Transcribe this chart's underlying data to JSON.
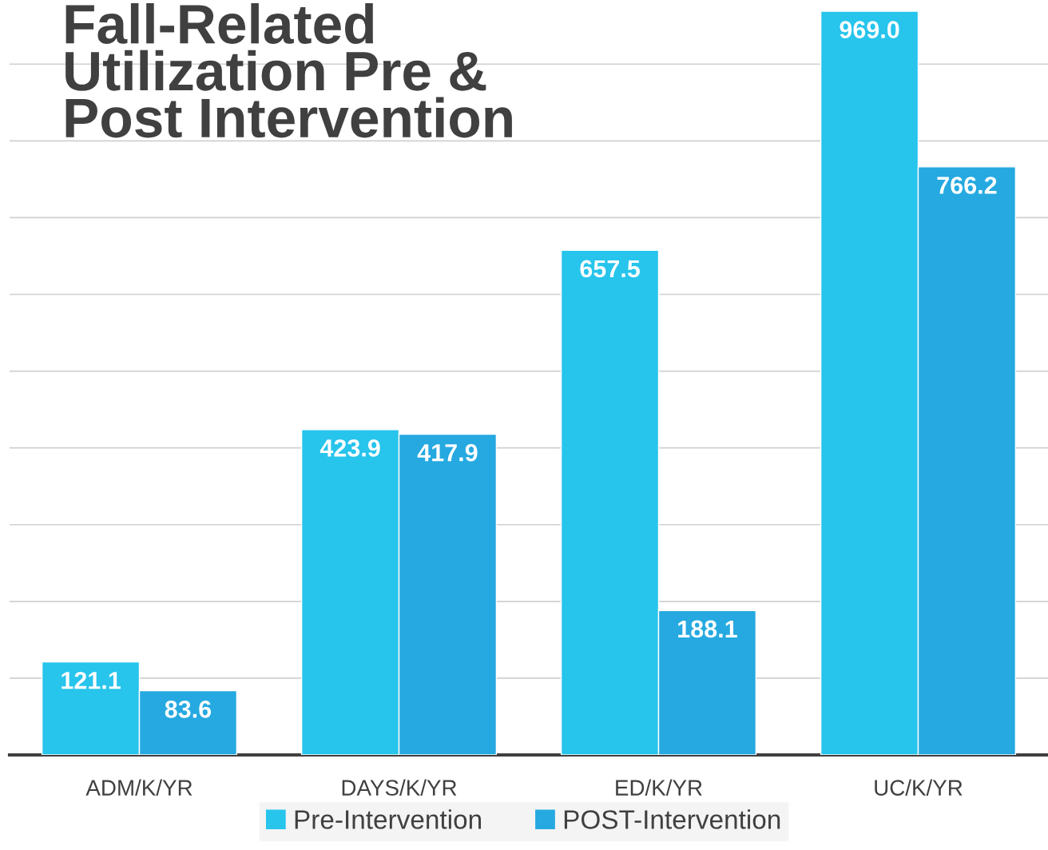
{
  "chart_data": {
    "type": "bar",
    "title": "Fall-Related\nUtilization Pre &\nPost Intervention",
    "categories": [
      "ADM/K/YR",
      "DAYS/K/YR",
      "ED/K/YR",
      "UC/K/YR"
    ],
    "series": [
      {
        "name": "Pre-Intervention",
        "color": "#27c4ec",
        "values": [
          121.1,
          423.9,
          657.5,
          969.0
        ],
        "value_labels": [
          "121.1",
          "423.9",
          "657.5",
          "969.0"
        ]
      },
      {
        "name": "POST-Intervention",
        "color": "#25a9e0",
        "values": [
          83.6,
          417.9,
          188.1,
          766.2
        ],
        "value_labels": [
          "83.6",
          "417.9",
          "188.1",
          "766.2"
        ]
      }
    ],
    "grid": "y",
    "legend": "bottom",
    "tick_labels": "x"
  }
}
